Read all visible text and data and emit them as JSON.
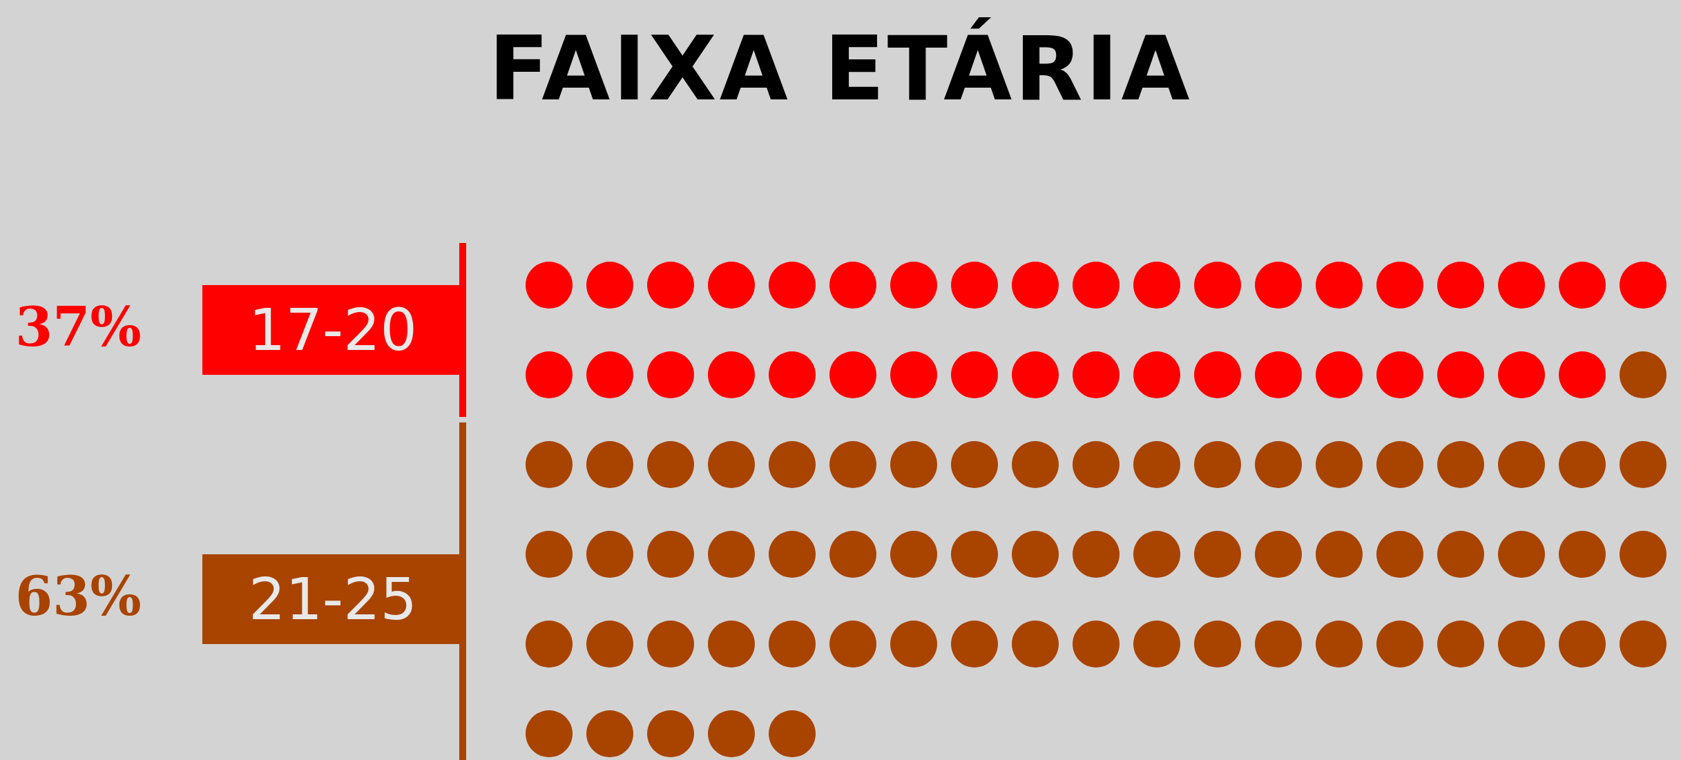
{
  "chart_data": {
    "type": "other",
    "title": "FAIXA ETÁRIA",
    "categories": [
      "17-20",
      "21-25"
    ],
    "values": [
      37,
      63
    ],
    "value_labels": [
      "37%",
      "63%"
    ],
    "colors": [
      "#ff0000",
      "#a84300"
    ]
  }
}
